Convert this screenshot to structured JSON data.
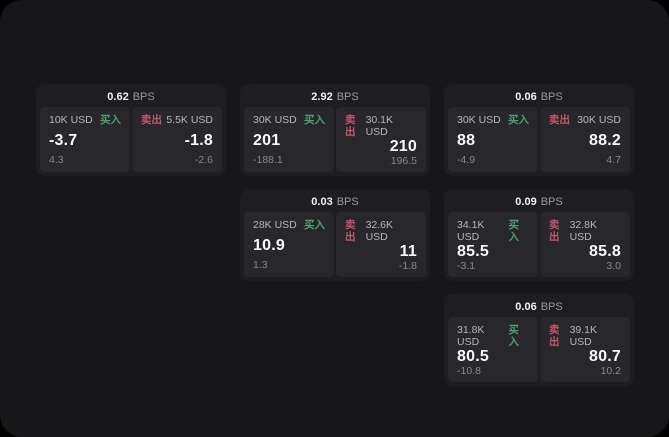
{
  "labels": {
    "bps_unit": "BPS",
    "buy_side": "买入",
    "sell_side": "卖出"
  },
  "colors": {
    "buy_green": "#4f9e6e",
    "sell_red": "#c2566a",
    "page_background": "#17171a",
    "card_background": "#1e1e21",
    "panel_background": "#28282c"
  },
  "cards": [
    {
      "bps": "0.62",
      "grid": {
        "row": 1,
        "col": 1
      },
      "buy": {
        "size": "10K USD",
        "price": "-3.7",
        "delta": "4.3"
      },
      "sell": {
        "size": "5.5K USD",
        "price": "-1.8",
        "delta": "-2.6"
      }
    },
    {
      "bps": "2.92",
      "grid": {
        "row": 1,
        "col": 2
      },
      "buy": {
        "size": "30K USD",
        "price": "201",
        "delta": "-188.1"
      },
      "sell": {
        "size": "30.1K USD",
        "price": "210",
        "delta": "196.5"
      }
    },
    {
      "bps": "0.06",
      "grid": {
        "row": 1,
        "col": 3
      },
      "buy": {
        "size": "30K USD",
        "price": "88",
        "delta": "-4.9"
      },
      "sell": {
        "size": "30K USD",
        "price": "88.2",
        "delta": "4.7"
      }
    },
    {
      "bps": "0.03",
      "grid": {
        "row": 2,
        "col": 2
      },
      "buy": {
        "size": "28K USD",
        "price": "10.9",
        "delta": "1.3"
      },
      "sell": {
        "size": "32.6K USD",
        "price": "11",
        "delta": "-1.8"
      }
    },
    {
      "bps": "0.09",
      "grid": {
        "row": 2,
        "col": 3
      },
      "buy": {
        "size": "34.1K USD",
        "price": "85.5",
        "delta": "-3.1"
      },
      "sell": {
        "size": "32.8K USD",
        "price": "85.8",
        "delta": "3.0"
      }
    },
    {
      "bps": "0.06",
      "grid": {
        "row": 3,
        "col": 3
      },
      "buy": {
        "size": "31.8K USD",
        "price": "80.5",
        "delta": "-10.8"
      },
      "sell": {
        "size": "39.1K USD",
        "price": "80.7",
        "delta": "10.2"
      }
    }
  ]
}
